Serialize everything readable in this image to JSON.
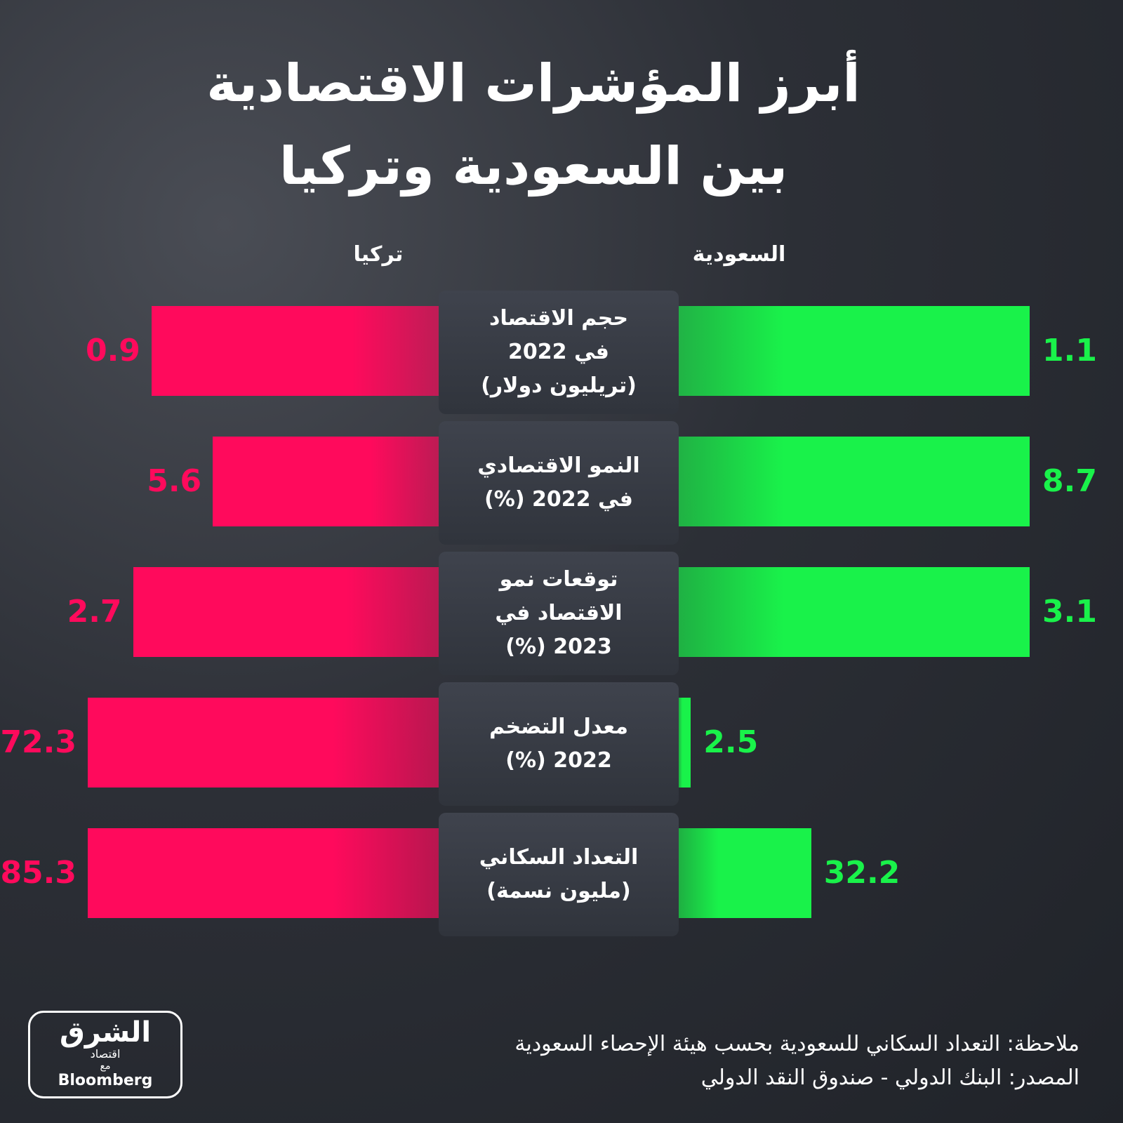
{
  "chart_data": {
    "type": "diverging_bar",
    "title": "أبرز المؤشرات الاقتصادية\nبين السعودية وتركيا",
    "categories": [
      "حجم الاقتصاد\nفي 2022\n(تريليون دولار)",
      "النمو الاقتصادي\nفي 2022 (%)",
      "توقعات نمو\nالاقتصاد في\n2023 (%)",
      "معدل التضخم\n2022 (%)",
      "التعداد السكاني\n(مليون نسمة)"
    ],
    "series": [
      {
        "name": "السعودية",
        "color": "#19f24a",
        "side": "right",
        "values": [
          1.1,
          8.7,
          3.1,
          2.5,
          32.2
        ]
      },
      {
        "name": "تركيا",
        "color": "#ff0a5c",
        "side": "left",
        "values": [
          0.9,
          5.6,
          2.7,
          72.3,
          85.3
        ]
      }
    ],
    "note": "ملاحظة: التعداد السكاني للسعودية بحسب هيئة الإحصاء السعودية",
    "source": "المصدر: البنك الدولي - صندوق النقد الدولي"
  },
  "branding": {
    "name": "الشرق",
    "sub": "اقتصاد",
    "with": "مع",
    "partner": "Bloomberg"
  }
}
